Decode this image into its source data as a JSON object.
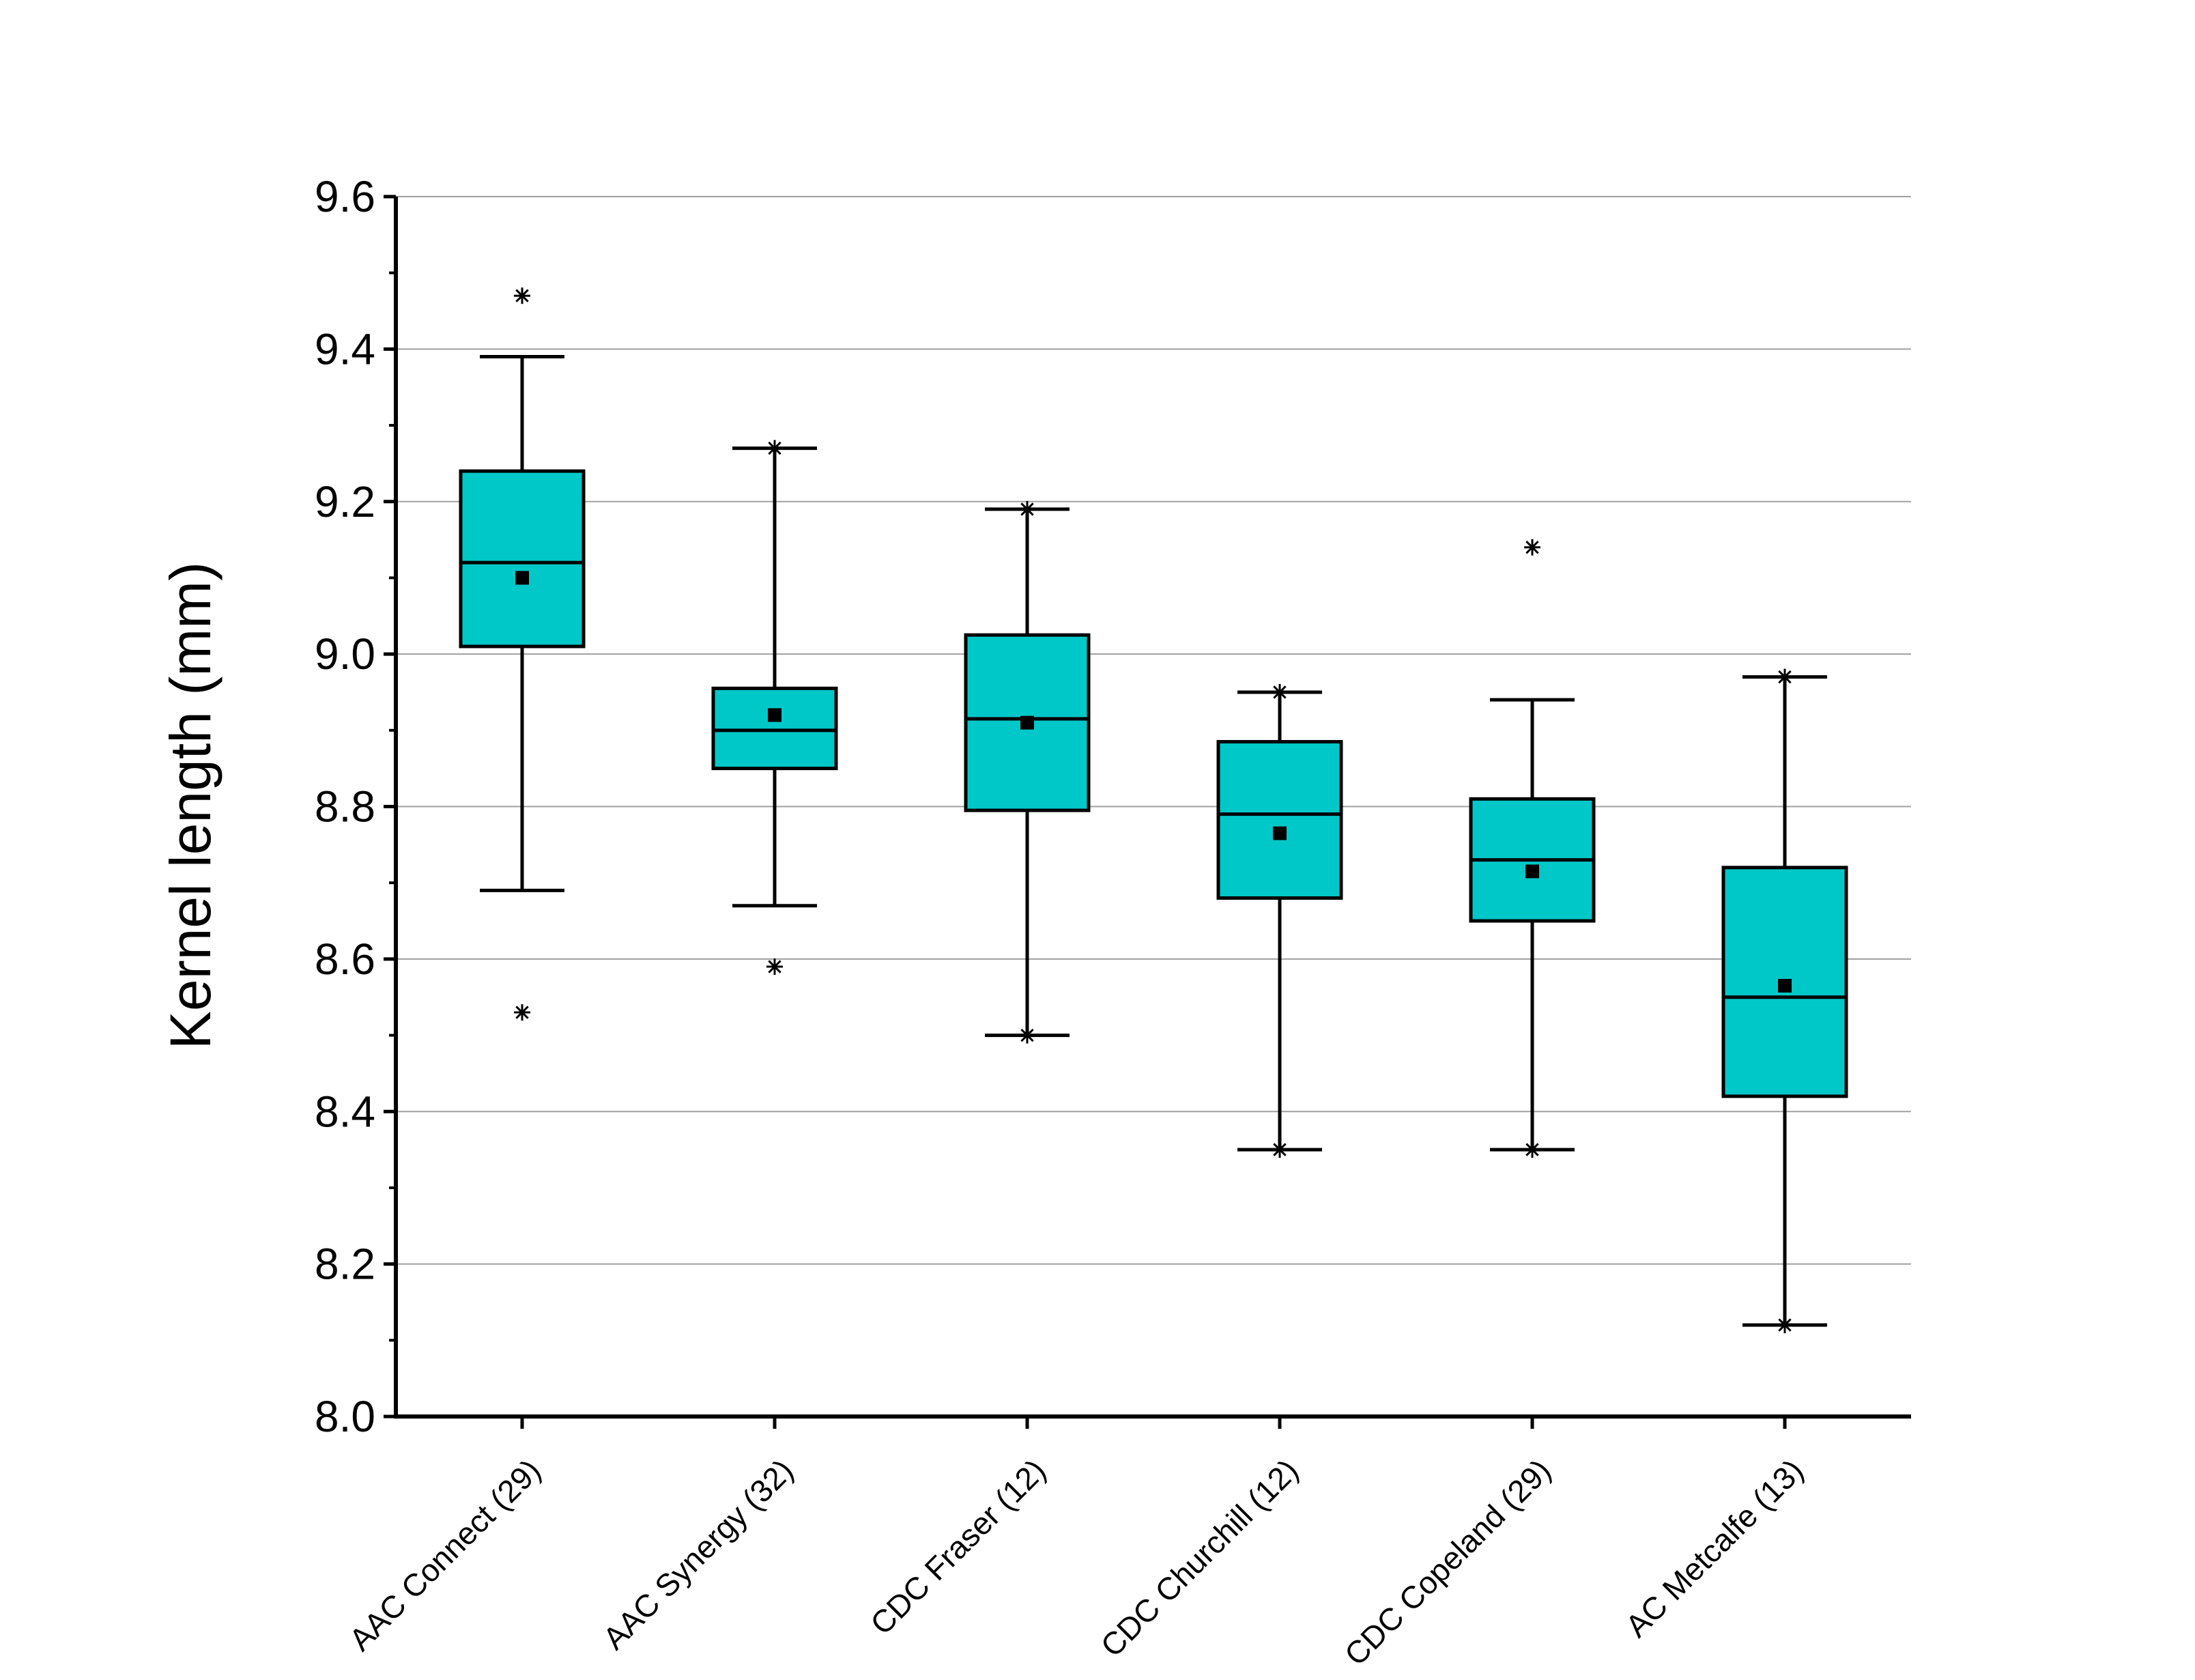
{
  "chart_data": {
    "type": "box",
    "ylabel": "Kernel length (mm)",
    "xlabel": "",
    "ylim": [
      8.0,
      9.6
    ],
    "yticks": [
      8.0,
      8.2,
      8.4,
      8.6,
      8.8,
      9.0,
      9.2,
      9.4,
      9.6
    ],
    "ytick_labels": [
      "8.0",
      "8.2",
      "8.4",
      "8.6",
      "8.8",
      "9.0",
      "9.2",
      "9.4",
      "9.6"
    ],
    "grid": true,
    "colors": {
      "box_fill": "#00C8C8",
      "outline": "#000000",
      "grid": "#A0A0A0"
    },
    "categories": [
      "AAC Connect (29)",
      "AAC Synergy (32)",
      "CDC Fraser (12)",
      "CDC Churchill (12)",
      "CDC Copeland (29)",
      "AC Metcalfe (13)"
    ],
    "boxes": [
      {
        "q1": 9.01,
        "median": 9.12,
        "q3": 9.24,
        "mean": 9.1,
        "whisker_low": 8.69,
        "whisker_high": 9.39,
        "outliers": [
          9.47,
          8.53
        ]
      },
      {
        "q1": 8.85,
        "median": 8.9,
        "q3": 8.955,
        "mean": 8.92,
        "whisker_low": 8.67,
        "whisker_high": 9.27,
        "outliers": [
          9.27,
          8.59
        ]
      },
      {
        "q1": 8.795,
        "median": 8.915,
        "q3": 9.025,
        "mean": 8.91,
        "whisker_low": 8.5,
        "whisker_high": 9.19,
        "outliers": [
          9.19,
          8.5
        ]
      },
      {
        "q1": 8.68,
        "median": 8.79,
        "q3": 8.885,
        "mean": 8.765,
        "whisker_low": 8.35,
        "whisker_high": 8.95,
        "outliers": [
          8.95,
          8.35
        ]
      },
      {
        "q1": 8.65,
        "median": 8.73,
        "q3": 8.81,
        "mean": 8.715,
        "whisker_low": 8.35,
        "whisker_high": 8.94,
        "outliers": [
          9.14,
          8.35
        ]
      },
      {
        "q1": 8.42,
        "median": 8.55,
        "q3": 8.72,
        "mean": 8.565,
        "whisker_low": 8.12,
        "whisker_high": 8.97,
        "outliers": [
          8.97,
          8.12
        ]
      }
    ]
  }
}
